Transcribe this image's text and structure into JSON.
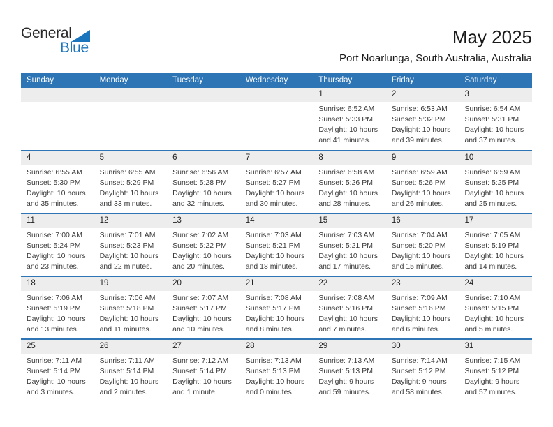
{
  "logo": {
    "general": "General",
    "blue": "Blue"
  },
  "header": {
    "title": "May 2025",
    "subtitle": "Port Noarlunga, South Australia, Australia"
  },
  "colors": {
    "header_blue": "#2e75b6",
    "week_divider_blue": "#2e75b6",
    "strip_gray": "#ededed",
    "logo_blue": "#1b75bc"
  },
  "calendar": {
    "day_headers": [
      "Sunday",
      "Monday",
      "Tuesday",
      "Wednesday",
      "Thursday",
      "Friday",
      "Saturday"
    ],
    "weeks": [
      [
        null,
        null,
        null,
        null,
        {
          "day": "1",
          "sunrise": "Sunrise: 6:52 AM",
          "sunset": "Sunset: 5:33 PM",
          "daylight_line1": "Daylight: 10 hours",
          "daylight_line2": "and 41 minutes."
        },
        {
          "day": "2",
          "sunrise": "Sunrise: 6:53 AM",
          "sunset": "Sunset: 5:32 PM",
          "daylight_line1": "Daylight: 10 hours",
          "daylight_line2": "and 39 minutes."
        },
        {
          "day": "3",
          "sunrise": "Sunrise: 6:54 AM",
          "sunset": "Sunset: 5:31 PM",
          "daylight_line1": "Daylight: 10 hours",
          "daylight_line2": "and 37 minutes."
        }
      ],
      [
        {
          "day": "4",
          "sunrise": "Sunrise: 6:55 AM",
          "sunset": "Sunset: 5:30 PM",
          "daylight_line1": "Daylight: 10 hours",
          "daylight_line2": "and 35 minutes."
        },
        {
          "day": "5",
          "sunrise": "Sunrise: 6:55 AM",
          "sunset": "Sunset: 5:29 PM",
          "daylight_line1": "Daylight: 10 hours",
          "daylight_line2": "and 33 minutes."
        },
        {
          "day": "6",
          "sunrise": "Sunrise: 6:56 AM",
          "sunset": "Sunset: 5:28 PM",
          "daylight_line1": "Daylight: 10 hours",
          "daylight_line2": "and 32 minutes."
        },
        {
          "day": "7",
          "sunrise": "Sunrise: 6:57 AM",
          "sunset": "Sunset: 5:27 PM",
          "daylight_line1": "Daylight: 10 hours",
          "daylight_line2": "and 30 minutes."
        },
        {
          "day": "8",
          "sunrise": "Sunrise: 6:58 AM",
          "sunset": "Sunset: 5:26 PM",
          "daylight_line1": "Daylight: 10 hours",
          "daylight_line2": "and 28 minutes."
        },
        {
          "day": "9",
          "sunrise": "Sunrise: 6:59 AM",
          "sunset": "Sunset: 5:26 PM",
          "daylight_line1": "Daylight: 10 hours",
          "daylight_line2": "and 26 minutes."
        },
        {
          "day": "10",
          "sunrise": "Sunrise: 6:59 AM",
          "sunset": "Sunset: 5:25 PM",
          "daylight_line1": "Daylight: 10 hours",
          "daylight_line2": "and 25 minutes."
        }
      ],
      [
        {
          "day": "11",
          "sunrise": "Sunrise: 7:00 AM",
          "sunset": "Sunset: 5:24 PM",
          "daylight_line1": "Daylight: 10 hours",
          "daylight_line2": "and 23 minutes."
        },
        {
          "day": "12",
          "sunrise": "Sunrise: 7:01 AM",
          "sunset": "Sunset: 5:23 PM",
          "daylight_line1": "Daylight: 10 hours",
          "daylight_line2": "and 22 minutes."
        },
        {
          "day": "13",
          "sunrise": "Sunrise: 7:02 AM",
          "sunset": "Sunset: 5:22 PM",
          "daylight_line1": "Daylight: 10 hours",
          "daylight_line2": "and 20 minutes."
        },
        {
          "day": "14",
          "sunrise": "Sunrise: 7:03 AM",
          "sunset": "Sunset: 5:21 PM",
          "daylight_line1": "Daylight: 10 hours",
          "daylight_line2": "and 18 minutes."
        },
        {
          "day": "15",
          "sunrise": "Sunrise: 7:03 AM",
          "sunset": "Sunset: 5:21 PM",
          "daylight_line1": "Daylight: 10 hours",
          "daylight_line2": "and 17 minutes."
        },
        {
          "day": "16",
          "sunrise": "Sunrise: 7:04 AM",
          "sunset": "Sunset: 5:20 PM",
          "daylight_line1": "Daylight: 10 hours",
          "daylight_line2": "and 15 minutes."
        },
        {
          "day": "17",
          "sunrise": "Sunrise: 7:05 AM",
          "sunset": "Sunset: 5:19 PM",
          "daylight_line1": "Daylight: 10 hours",
          "daylight_line2": "and 14 minutes."
        }
      ],
      [
        {
          "day": "18",
          "sunrise": "Sunrise: 7:06 AM",
          "sunset": "Sunset: 5:19 PM",
          "daylight_line1": "Daylight: 10 hours",
          "daylight_line2": "and 13 minutes."
        },
        {
          "day": "19",
          "sunrise": "Sunrise: 7:06 AM",
          "sunset": "Sunset: 5:18 PM",
          "daylight_line1": "Daylight: 10 hours",
          "daylight_line2": "and 11 minutes."
        },
        {
          "day": "20",
          "sunrise": "Sunrise: 7:07 AM",
          "sunset": "Sunset: 5:17 PM",
          "daylight_line1": "Daylight: 10 hours",
          "daylight_line2": "and 10 minutes."
        },
        {
          "day": "21",
          "sunrise": "Sunrise: 7:08 AM",
          "sunset": "Sunset: 5:17 PM",
          "daylight_line1": "Daylight: 10 hours",
          "daylight_line2": "and 8 minutes."
        },
        {
          "day": "22",
          "sunrise": "Sunrise: 7:08 AM",
          "sunset": "Sunset: 5:16 PM",
          "daylight_line1": "Daylight: 10 hours",
          "daylight_line2": "and 7 minutes."
        },
        {
          "day": "23",
          "sunrise": "Sunrise: 7:09 AM",
          "sunset": "Sunset: 5:16 PM",
          "daylight_line1": "Daylight: 10 hours",
          "daylight_line2": "and 6 minutes."
        },
        {
          "day": "24",
          "sunrise": "Sunrise: 7:10 AM",
          "sunset": "Sunset: 5:15 PM",
          "daylight_line1": "Daylight: 10 hours",
          "daylight_line2": "and 5 minutes."
        }
      ],
      [
        {
          "day": "25",
          "sunrise": "Sunrise: 7:11 AM",
          "sunset": "Sunset: 5:14 PM",
          "daylight_line1": "Daylight: 10 hours",
          "daylight_line2": "and 3 minutes."
        },
        {
          "day": "26",
          "sunrise": "Sunrise: 7:11 AM",
          "sunset": "Sunset: 5:14 PM",
          "daylight_line1": "Daylight: 10 hours",
          "daylight_line2": "and 2 minutes."
        },
        {
          "day": "27",
          "sunrise": "Sunrise: 7:12 AM",
          "sunset": "Sunset: 5:14 PM",
          "daylight_line1": "Daylight: 10 hours",
          "daylight_line2": "and 1 minute."
        },
        {
          "day": "28",
          "sunrise": "Sunrise: 7:13 AM",
          "sunset": "Sunset: 5:13 PM",
          "daylight_line1": "Daylight: 10 hours",
          "daylight_line2": "and 0 minutes."
        },
        {
          "day": "29",
          "sunrise": "Sunrise: 7:13 AM",
          "sunset": "Sunset: 5:13 PM",
          "daylight_line1": "Daylight: 9 hours",
          "daylight_line2": "and 59 minutes."
        },
        {
          "day": "30",
          "sunrise": "Sunrise: 7:14 AM",
          "sunset": "Sunset: 5:12 PM",
          "daylight_line1": "Daylight: 9 hours",
          "daylight_line2": "and 58 minutes."
        },
        {
          "day": "31",
          "sunrise": "Sunrise: 7:15 AM",
          "sunset": "Sunset: 5:12 PM",
          "daylight_line1": "Daylight: 9 hours",
          "daylight_line2": "and 57 minutes."
        }
      ]
    ]
  }
}
